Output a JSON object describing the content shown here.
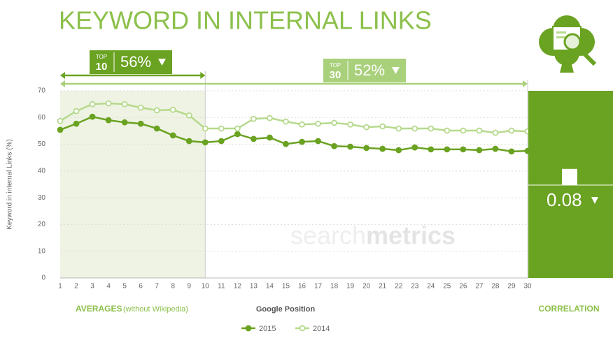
{
  "chart_data": {
    "type": "line",
    "title": "KEYWORD IN INTERNAL LINKS",
    "y_label": "Keyword in internal Links (%)",
    "x_label": "Google Position",
    "x": [
      1,
      2,
      3,
      4,
      5,
      6,
      7,
      8,
      9,
      10,
      11,
      12,
      13,
      14,
      15,
      16,
      17,
      18,
      19,
      20,
      21,
      22,
      23,
      24,
      25,
      26,
      27,
      28,
      29,
      30
    ],
    "xlim": [
      1,
      30
    ],
    "xticks": [
      1,
      2,
      3,
      4,
      5,
      6,
      7,
      8,
      9,
      10,
      11,
      12,
      13,
      14,
      15,
      16,
      17,
      18,
      19,
      20,
      21,
      22,
      23,
      24,
      25,
      26,
      27,
      28,
      29,
      30
    ],
    "ylim": [
      0,
      70
    ],
    "yticks": [
      0,
      10,
      20,
      30,
      40,
      50,
      60,
      70
    ],
    "grid": true,
    "series": [
      {
        "name": "2015",
        "color": "#6aa221",
        "values": [
          55.4,
          57.7,
          60.3,
          59,
          58.2,
          57.7,
          55.9,
          53.3,
          51.2,
          50.7,
          51.2,
          53.8,
          52,
          52.5,
          50.1,
          50.9,
          51.2,
          49.3,
          49.1,
          48.6,
          48.3,
          47.8,
          48.8,
          48.1,
          48.1,
          48.1,
          47.8,
          48.3,
          47.3,
          47.5
        ]
      },
      {
        "name": "2014",
        "color": "#b6d98d",
        "values": [
          58.7,
          62.4,
          65,
          65.3,
          65,
          63.7,
          62.7,
          62.9,
          60.8,
          55.9,
          55.9,
          55.9,
          59.5,
          59.8,
          58.5,
          57.4,
          57.7,
          58,
          57.4,
          56.4,
          56.7,
          55.9,
          55.9,
          55.9,
          55.1,
          55.1,
          55.1,
          54.3,
          55.1,
          54.8
        ]
      }
    ],
    "averages": [
      {
        "top_label": "TOP",
        "rank": 10,
        "value_label": "56%",
        "color": "#6aa221"
      },
      {
        "top_label": "TOP",
        "rank": 30,
        "value_label": "52%",
        "color": "#a9d07b"
      }
    ],
    "averages_label": "AVERAGES",
    "averages_note": "(without Wikipedia)",
    "correlation": {
      "label": "CORRELATION",
      "value": 0.08,
      "color": "#6aa221"
    },
    "watermark": [
      "search",
      "metrics"
    ]
  }
}
